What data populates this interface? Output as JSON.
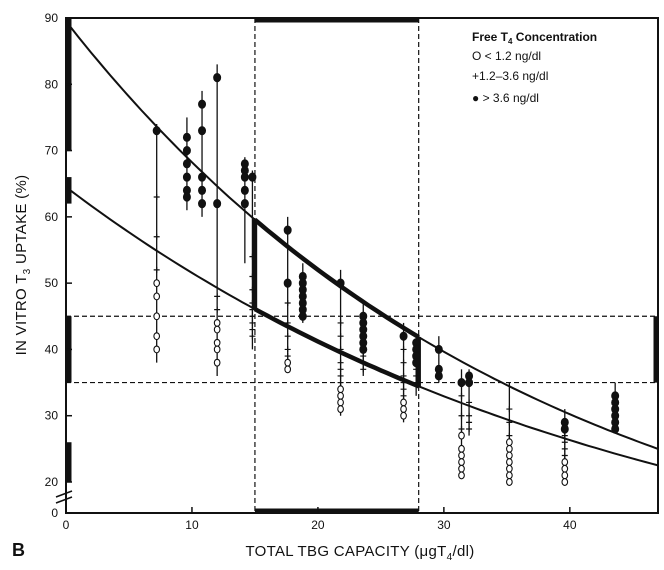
{
  "chart_data": {
    "type": "scatter",
    "panel_label": "B",
    "xlabel": "TOTAL TBG CAPACITY (",
    "xlabel_unit": "μgT",
    "xlabel_sub": "4",
    "xlabel_tail": "/dl)",
    "ylabel": "IN VITRO T",
    "ylabel_sub": "3",
    "ylabel_tail": " UPTAKE (%)",
    "xlim": [
      0,
      47
    ],
    "ylim": [
      0,
      90
    ],
    "x_ticks": [
      0,
      10,
      20,
      30,
      40
    ],
    "y_ticks": [
      0,
      20,
      30,
      40,
      50,
      60,
      70,
      80,
      90
    ],
    "axis_break": "between 0 and 20 on y axis",
    "grid": false,
    "legend": {
      "position": "top-right",
      "title": "Free T",
      "title_sub": "4",
      "title_tail": " Concentration",
      "entries": [
        {
          "marker": "open-circle",
          "label": "O  < 1.2 ng/dl"
        },
        {
          "marker": "plus",
          "label": "+1.2–3.6 ng/dl"
        },
        {
          "marker": "filled-circle",
          "label": "●  > 3.6 ng/dl"
        }
      ]
    },
    "normal_range": {
      "x": [
        15,
        28
      ],
      "y": [
        35,
        45
      ]
    },
    "curves": [
      {
        "id": "upper",
        "y_at_0": 89.5,
        "y_at_47": 25
      },
      {
        "id": "lower",
        "y_at_0": 64.5,
        "y_at_47": 22.5
      }
    ],
    "groups": [
      {
        "x": 7.2,
        "top": 74,
        "bottom": 38,
        "filled": [
          73
        ],
        "plus": [
          63,
          57,
          52
        ],
        "open": [
          50,
          48,
          45,
          42,
          40
        ]
      },
      {
        "x": 9.6,
        "top": 75,
        "bottom": 61,
        "filled": [
          72,
          70,
          68,
          66,
          64,
          63
        ],
        "plus": [],
        "open": []
      },
      {
        "x": 10.8,
        "top": 79,
        "bottom": 60,
        "filled": [
          77,
          73,
          66,
          64,
          62
        ],
        "plus": [],
        "open": []
      },
      {
        "x": 12.0,
        "top": 83,
        "bottom": 36,
        "filled": [
          81,
          62
        ],
        "plus": [
          48,
          46
        ],
        "open": [
          44,
          43,
          41,
          40,
          38
        ]
      },
      {
        "x": 14.2,
        "top": 69,
        "bottom": 53,
        "filled": [
          68,
          67,
          66,
          64,
          62
        ],
        "plus": [],
        "open": []
      },
      {
        "x": 14.8,
        "top": 67,
        "bottom": 40,
        "filled": [
          66
        ],
        "plus": [
          54,
          51,
          49,
          47,
          46,
          45,
          44,
          43,
          42
        ],
        "open": []
      },
      {
        "x": 17.6,
        "top": 60,
        "bottom": 37,
        "filled": [
          58,
          50
        ],
        "plus": [
          47,
          44,
          42,
          40,
          39
        ],
        "open": [
          38,
          37
        ]
      },
      {
        "x": 18.8,
        "top": 53,
        "bottom": 44,
        "filled": [
          51,
          50,
          49,
          48,
          47,
          46,
          45
        ],
        "plus": [],
        "open": []
      },
      {
        "x": 21.8,
        "top": 52,
        "bottom": 30,
        "filled": [
          50
        ],
        "plus": [
          44,
          42,
          40,
          38,
          37,
          36,
          35
        ],
        "open": [
          34,
          33,
          32,
          31
        ]
      },
      {
        "x": 23.6,
        "top": 47,
        "bottom": 36,
        "filled": [
          45,
          44,
          43,
          42,
          41,
          40
        ],
        "plus": [
          39,
          38,
          37
        ],
        "open": []
      },
      {
        "x": 26.8,
        "top": 44,
        "bottom": 29,
        "filled": [
          42
        ],
        "plus": [
          40,
          38,
          36,
          35,
          34,
          33
        ],
        "open": [
          32,
          31,
          30
        ]
      },
      {
        "x": 27.8,
        "top": 42,
        "bottom": 33,
        "filled": [
          41,
          40,
          39,
          38
        ],
        "plus": [
          37,
          36,
          35
        ],
        "open": []
      },
      {
        "x": 29.6,
        "top": 42,
        "bottom": 35,
        "filled": [
          40,
          37,
          36
        ],
        "plus": [],
        "open": []
      },
      {
        "x": 31.4,
        "top": 37,
        "bottom": 21,
        "filled": [
          35
        ],
        "plus": [
          33,
          30,
          28
        ],
        "open": [
          27,
          25,
          24,
          23,
          22,
          21
        ]
      },
      {
        "x": 32.0,
        "top": 37,
        "bottom": 27,
        "filled": [
          36,
          35
        ],
        "plus": [
          32,
          30,
          29,
          28
        ],
        "open": []
      },
      {
        "x": 35.2,
        "top": 35,
        "bottom": 20,
        "filled": [],
        "plus": [
          31,
          29,
          27
        ],
        "open": [
          26,
          25,
          24,
          23,
          22,
          21,
          20
        ]
      },
      {
        "x": 39.6,
        "top": 31,
        "bottom": 20,
        "filled": [
          29,
          28
        ],
        "plus": [
          27,
          26,
          25,
          24
        ],
        "open": [
          23,
          22,
          21,
          20
        ]
      },
      {
        "x": 43.6,
        "top": 35,
        "bottom": 28,
        "filled": [
          33,
          32,
          31,
          30,
          29,
          28
        ],
        "plus": [],
        "open": []
      }
    ]
  }
}
